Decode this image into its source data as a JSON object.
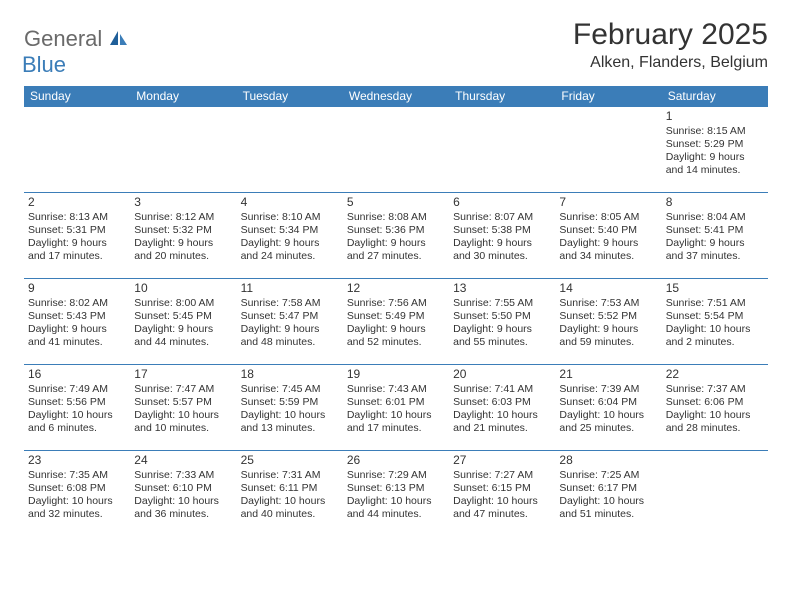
{
  "logo": {
    "word1": "General",
    "word2": "Blue"
  },
  "header": {
    "title": "February 2025",
    "location": "Alken, Flanders, Belgium"
  },
  "columns": [
    "Sunday",
    "Monday",
    "Tuesday",
    "Wednesday",
    "Thursday",
    "Friday",
    "Saturday"
  ],
  "colors": {
    "accent": "#3b7db8",
    "header_text": "#ffffff",
    "body_text": "#333333",
    "logo_gray": "#6a6a6a"
  },
  "fonts": {
    "title_size": 30,
    "location_size": 16,
    "dayheader_size": 12,
    "cell_size": 10.5
  },
  "weeks": [
    [
      null,
      null,
      null,
      null,
      null,
      null,
      {
        "n": "1",
        "sr": "Sunrise: 8:15 AM",
        "ss": "Sunset: 5:29 PM",
        "d1": "Daylight: 9 hours",
        "d2": "and 14 minutes."
      }
    ],
    [
      {
        "n": "2",
        "sr": "Sunrise: 8:13 AM",
        "ss": "Sunset: 5:31 PM",
        "d1": "Daylight: 9 hours",
        "d2": "and 17 minutes."
      },
      {
        "n": "3",
        "sr": "Sunrise: 8:12 AM",
        "ss": "Sunset: 5:32 PM",
        "d1": "Daylight: 9 hours",
        "d2": "and 20 minutes."
      },
      {
        "n": "4",
        "sr": "Sunrise: 8:10 AM",
        "ss": "Sunset: 5:34 PM",
        "d1": "Daylight: 9 hours",
        "d2": "and 24 minutes."
      },
      {
        "n": "5",
        "sr": "Sunrise: 8:08 AM",
        "ss": "Sunset: 5:36 PM",
        "d1": "Daylight: 9 hours",
        "d2": "and 27 minutes."
      },
      {
        "n": "6",
        "sr": "Sunrise: 8:07 AM",
        "ss": "Sunset: 5:38 PM",
        "d1": "Daylight: 9 hours",
        "d2": "and 30 minutes."
      },
      {
        "n": "7",
        "sr": "Sunrise: 8:05 AM",
        "ss": "Sunset: 5:40 PM",
        "d1": "Daylight: 9 hours",
        "d2": "and 34 minutes."
      },
      {
        "n": "8",
        "sr": "Sunrise: 8:04 AM",
        "ss": "Sunset: 5:41 PM",
        "d1": "Daylight: 9 hours",
        "d2": "and 37 minutes."
      }
    ],
    [
      {
        "n": "9",
        "sr": "Sunrise: 8:02 AM",
        "ss": "Sunset: 5:43 PM",
        "d1": "Daylight: 9 hours",
        "d2": "and 41 minutes."
      },
      {
        "n": "10",
        "sr": "Sunrise: 8:00 AM",
        "ss": "Sunset: 5:45 PM",
        "d1": "Daylight: 9 hours",
        "d2": "and 44 minutes."
      },
      {
        "n": "11",
        "sr": "Sunrise: 7:58 AM",
        "ss": "Sunset: 5:47 PM",
        "d1": "Daylight: 9 hours",
        "d2": "and 48 minutes."
      },
      {
        "n": "12",
        "sr": "Sunrise: 7:56 AM",
        "ss": "Sunset: 5:49 PM",
        "d1": "Daylight: 9 hours",
        "d2": "and 52 minutes."
      },
      {
        "n": "13",
        "sr": "Sunrise: 7:55 AM",
        "ss": "Sunset: 5:50 PM",
        "d1": "Daylight: 9 hours",
        "d2": "and 55 minutes."
      },
      {
        "n": "14",
        "sr": "Sunrise: 7:53 AM",
        "ss": "Sunset: 5:52 PM",
        "d1": "Daylight: 9 hours",
        "d2": "and 59 minutes."
      },
      {
        "n": "15",
        "sr": "Sunrise: 7:51 AM",
        "ss": "Sunset: 5:54 PM",
        "d1": "Daylight: 10 hours",
        "d2": "and 2 minutes."
      }
    ],
    [
      {
        "n": "16",
        "sr": "Sunrise: 7:49 AM",
        "ss": "Sunset: 5:56 PM",
        "d1": "Daylight: 10 hours",
        "d2": "and 6 minutes."
      },
      {
        "n": "17",
        "sr": "Sunrise: 7:47 AM",
        "ss": "Sunset: 5:57 PM",
        "d1": "Daylight: 10 hours",
        "d2": "and 10 minutes."
      },
      {
        "n": "18",
        "sr": "Sunrise: 7:45 AM",
        "ss": "Sunset: 5:59 PM",
        "d1": "Daylight: 10 hours",
        "d2": "and 13 minutes."
      },
      {
        "n": "19",
        "sr": "Sunrise: 7:43 AM",
        "ss": "Sunset: 6:01 PM",
        "d1": "Daylight: 10 hours",
        "d2": "and 17 minutes."
      },
      {
        "n": "20",
        "sr": "Sunrise: 7:41 AM",
        "ss": "Sunset: 6:03 PM",
        "d1": "Daylight: 10 hours",
        "d2": "and 21 minutes."
      },
      {
        "n": "21",
        "sr": "Sunrise: 7:39 AM",
        "ss": "Sunset: 6:04 PM",
        "d1": "Daylight: 10 hours",
        "d2": "and 25 minutes."
      },
      {
        "n": "22",
        "sr": "Sunrise: 7:37 AM",
        "ss": "Sunset: 6:06 PM",
        "d1": "Daylight: 10 hours",
        "d2": "and 28 minutes."
      }
    ],
    [
      {
        "n": "23",
        "sr": "Sunrise: 7:35 AM",
        "ss": "Sunset: 6:08 PM",
        "d1": "Daylight: 10 hours",
        "d2": "and 32 minutes."
      },
      {
        "n": "24",
        "sr": "Sunrise: 7:33 AM",
        "ss": "Sunset: 6:10 PM",
        "d1": "Daylight: 10 hours",
        "d2": "and 36 minutes."
      },
      {
        "n": "25",
        "sr": "Sunrise: 7:31 AM",
        "ss": "Sunset: 6:11 PM",
        "d1": "Daylight: 10 hours",
        "d2": "and 40 minutes."
      },
      {
        "n": "26",
        "sr": "Sunrise: 7:29 AM",
        "ss": "Sunset: 6:13 PM",
        "d1": "Daylight: 10 hours",
        "d2": "and 44 minutes."
      },
      {
        "n": "27",
        "sr": "Sunrise: 7:27 AM",
        "ss": "Sunset: 6:15 PM",
        "d1": "Daylight: 10 hours",
        "d2": "and 47 minutes."
      },
      {
        "n": "28",
        "sr": "Sunrise: 7:25 AM",
        "ss": "Sunset: 6:17 PM",
        "d1": "Daylight: 10 hours",
        "d2": "and 51 minutes."
      },
      null
    ]
  ]
}
